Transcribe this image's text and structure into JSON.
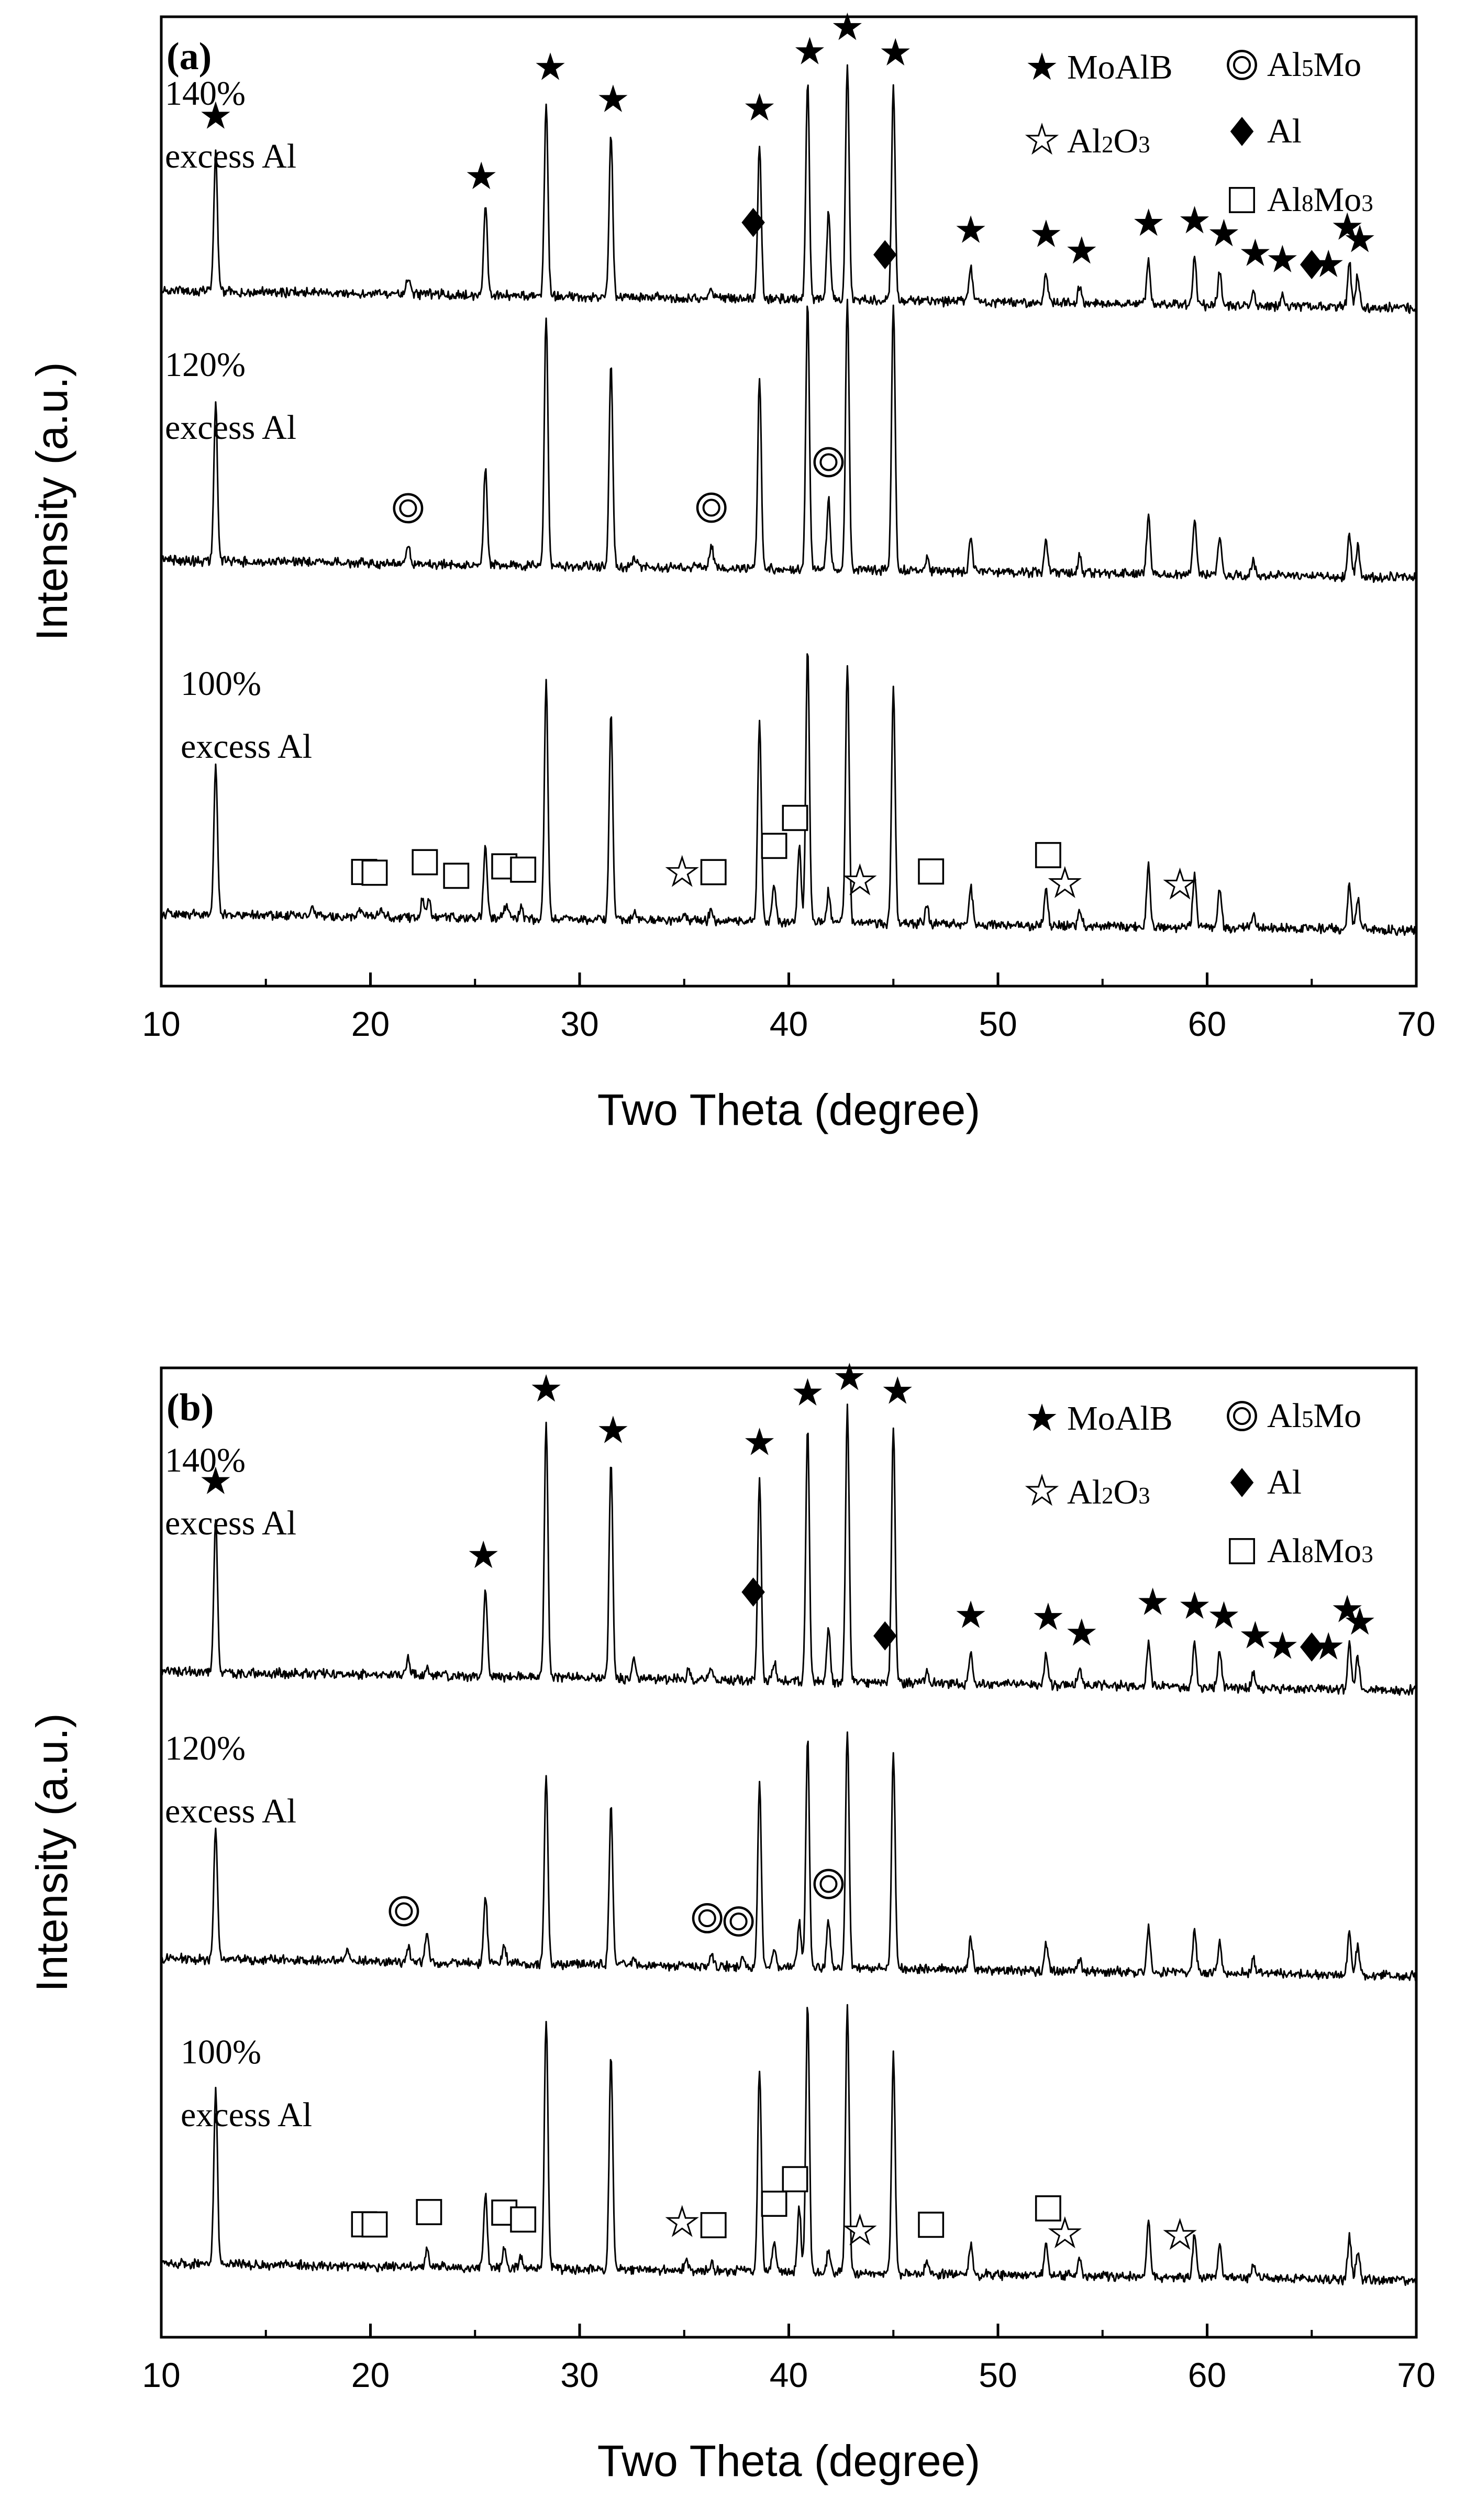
{
  "chart_data": [
    {
      "type": "line",
      "panel_label": "(a)",
      "xlabel": "Two Theta (degree)",
      "ylabel": "Intensity (a.u.)",
      "xlim": [
        10,
        70
      ],
      "xticks": [
        "10",
        "20",
        "30",
        "40",
        "50",
        "60",
        "70"
      ],
      "y_ticks_shown": false,
      "legend": [
        {
          "symbol": "filled-star",
          "label": "MoAlB"
        },
        {
          "symbol": "double-circle",
          "label": "Al5Mo"
        },
        {
          "symbol": "open-star",
          "label": "Al2O3"
        },
        {
          "symbol": "filled-diamond",
          "label": "Al"
        },
        {
          "symbol": "open-square",
          "label": "Al8Mo3"
        }
      ],
      "series": [
        {
          "name": "140% excess Al",
          "line1": "140%",
          "line2": "excess Al",
          "peaks": [
            [
              12.6,
              0.88
            ],
            [
              21.8,
              0.12
            ],
            [
              25.5,
              0.58
            ],
            [
              28.4,
              1.22
            ],
            [
              31.5,
              1.05
            ],
            [
              36.3,
              0.06
            ],
            [
              38.6,
              0.98
            ],
            [
              40.9,
              1.38
            ],
            [
              41.9,
              0.55
            ],
            [
              42.8,
              1.5
            ],
            [
              45.0,
              1.38
            ],
            [
              48.7,
              0.22
            ],
            [
              52.3,
              0.2
            ],
            [
              53.9,
              0.1
            ],
            [
              57.2,
              0.28
            ],
            [
              59.4,
              0.3
            ],
            [
              60.6,
              0.22
            ],
            [
              62.2,
              0.1
            ],
            [
              63.6,
              0.06
            ],
            [
              66.8,
              0.28
            ],
            [
              67.2,
              0.2
            ]
          ],
          "markers": [
            {
              "phase": "MoAlB",
              "x": [
                12.6,
                25.3,
                28.6,
                31.6,
                38.6,
                41.0,
                42.8,
                45.1,
                48.7,
                52.3,
                54.0,
                57.2,
                59.4,
                60.8,
                62.3,
                63.6,
                65.8,
                66.7,
                67.3
              ]
            },
            {
              "phase": "Al",
              "x": [
                38.3,
                44.6,
                65.0
              ]
            }
          ]
        },
        {
          "name": "120% excess Al",
          "line1": "120%",
          "line2": "excess Al",
          "peaks": [
            [
              12.6,
              1.0
            ],
            [
              21.8,
              0.12
            ],
            [
              25.5,
              0.62
            ],
            [
              28.4,
              1.6
            ],
            [
              31.5,
              1.3
            ],
            [
              32.6,
              0.06
            ],
            [
              36.3,
              0.15
            ],
            [
              38.6,
              1.2
            ],
            [
              40.9,
              1.7
            ],
            [
              41.9,
              0.45
            ],
            [
              42.8,
              1.72
            ],
            [
              45.0,
              1.7
            ],
            [
              46.6,
              0.08
            ],
            [
              48.7,
              0.22
            ],
            [
              52.3,
              0.2
            ],
            [
              53.9,
              0.1
            ],
            [
              57.2,
              0.38
            ],
            [
              59.4,
              0.35
            ],
            [
              60.6,
              0.25
            ],
            [
              62.2,
              0.1
            ],
            [
              66.8,
              0.28
            ],
            [
              67.2,
              0.2
            ]
          ],
          "markers": [
            {
              "phase": "Al5Mo",
              "x": [
                21.8,
                36.3,
                41.9
              ]
            }
          ]
        },
        {
          "name": "100% excess Al",
          "line1": "100%",
          "line2": "excess Al",
          "peaks": [
            [
              12.6,
              0.95
            ],
            [
              17.2,
              0.05
            ],
            [
              19.5,
              0.05
            ],
            [
              20.5,
              0.05
            ],
            [
              22.5,
              0.12
            ],
            [
              22.8,
              0.1
            ],
            [
              25.5,
              0.45
            ],
            [
              26.5,
              0.1
            ],
            [
              27.2,
              0.08
            ],
            [
              28.4,
              1.5
            ],
            [
              31.5,
              1.3
            ],
            [
              32.6,
              0.06
            ],
            [
              35.0,
              0.04
            ],
            [
              36.3,
              0.08
            ],
            [
              38.6,
              1.28
            ],
            [
              39.3,
              0.25
            ],
            [
              40.5,
              0.48
            ],
            [
              40.9,
              1.75
            ],
            [
              41.9,
              0.2
            ],
            [
              42.8,
              1.65
            ],
            [
              45.0,
              1.5
            ],
            [
              46.6,
              0.1
            ],
            [
              48.7,
              0.24
            ],
            [
              52.3,
              0.22
            ],
            [
              53.9,
              0.1
            ],
            [
              57.2,
              0.38
            ],
            [
              59.4,
              0.32
            ],
            [
              60.6,
              0.24
            ],
            [
              62.2,
              0.1
            ],
            [
              66.8,
              0.28
            ],
            [
              67.2,
              0.2
            ]
          ],
          "markers": [
            {
              "phase": "Al8Mo3",
              "x": [
                19.7,
                20.2,
                22.6,
                24.1,
                26.4,
                27.3,
                36.4,
                39.3,
                40.3,
                46.8,
                52.4
              ]
            },
            {
              "phase": "Al2O3",
              "x": [
                34.9,
                43.4,
                53.2,
                58.7
              ]
            }
          ]
        }
      ]
    },
    {
      "type": "line",
      "panel_label": "(b)",
      "xlabel": "Two Theta (degree)",
      "ylabel": "Intensity (a.u.)",
      "xlim": [
        10,
        70
      ],
      "xticks": [
        "10",
        "20",
        "30",
        "40",
        "50",
        "60",
        "70"
      ],
      "y_ticks_shown": false,
      "legend": [
        {
          "symbol": "filled-star",
          "label": "MoAlB"
        },
        {
          "symbol": "double-circle",
          "label": "Al5Mo"
        },
        {
          "symbol": "open-star",
          "label": "Al2O3"
        },
        {
          "symbol": "filled-diamond",
          "label": "Al"
        },
        {
          "symbol": "open-square",
          "label": "Al8Mo3"
        }
      ],
      "series": [
        {
          "name": "140% excess Al",
          "line1": "140%",
          "line2": "excess Al",
          "peaks": [
            [
              12.6,
              0.98
            ],
            [
              21.8,
              0.1
            ],
            [
              22.7,
              0.06
            ],
            [
              25.5,
              0.55
            ],
            [
              28.4,
              1.6
            ],
            [
              31.5,
              1.38
            ],
            [
              32.6,
              0.12
            ],
            [
              35.2,
              0.06
            ],
            [
              36.3,
              0.08
            ],
            [
              38.6,
              1.28
            ],
            [
              39.3,
              0.12
            ],
            [
              40.9,
              1.6
            ],
            [
              41.9,
              0.35
            ],
            [
              42.8,
              1.75
            ],
            [
              45.0,
              1.62
            ],
            [
              46.6,
              0.08
            ],
            [
              48.7,
              0.2
            ],
            [
              52.3,
              0.2
            ],
            [
              53.9,
              0.1
            ],
            [
              57.2,
              0.3
            ],
            [
              59.4,
              0.28
            ],
            [
              60.6,
              0.22
            ],
            [
              62.2,
              0.1
            ],
            [
              66.8,
              0.28
            ],
            [
              67.2,
              0.2
            ]
          ],
          "markers": [
            {
              "phase": "MoAlB",
              "x": [
                12.6,
                25.4,
                28.4,
                31.6,
                38.6,
                40.9,
                42.9,
                45.2,
                48.7,
                52.4,
                54.0,
                57.4,
                59.4,
                60.8,
                62.3,
                63.6,
                65.8,
                66.7,
                67.3
              ]
            },
            {
              "phase": "Al",
              "x": [
                38.3,
                44.6,
                65.0
              ]
            }
          ]
        },
        {
          "name": "120% excess Al",
          "line1": "120%",
          "line2": "excess Al",
          "peaks": [
            [
              12.6,
              0.85
            ],
            [
              18.9,
              0.08
            ],
            [
              21.8,
              0.1
            ],
            [
              22.7,
              0.2
            ],
            [
              25.5,
              0.42
            ],
            [
              26.4,
              0.1
            ],
            [
              28.4,
              1.2
            ],
            [
              31.5,
              1.0
            ],
            [
              32.6,
              0.05
            ],
            [
              36.3,
              0.08
            ],
            [
              37.8,
              0.06
            ],
            [
              38.6,
              1.15
            ],
            [
              39.3,
              0.12
            ],
            [
              40.5,
              0.3
            ],
            [
              40.9,
              1.45
            ],
            [
              41.9,
              0.3
            ],
            [
              42.8,
              1.5
            ],
            [
              45.0,
              1.38
            ],
            [
              48.7,
              0.2
            ],
            [
              52.3,
              0.18
            ],
            [
              53.9,
              0.08
            ],
            [
              57.2,
              0.28
            ],
            [
              59.4,
              0.28
            ],
            [
              60.6,
              0.2
            ],
            [
              62.2,
              0.1
            ],
            [
              66.8,
              0.28
            ],
            [
              67.2,
              0.2
            ]
          ],
          "markers": [
            {
              "phase": "Al5Mo",
              "x": [
                21.6,
                36.1,
                37.6,
                41.9
              ]
            }
          ]
        },
        {
          "name": "100% excess Al",
          "line1": "100%",
          "line2": "excess Al",
          "peaks": [
            [
              12.6,
              1.1
            ],
            [
              22.7,
              0.12
            ],
            [
              25.5,
              0.48
            ],
            [
              26.4,
              0.12
            ],
            [
              27.2,
              0.08
            ],
            [
              28.4,
              1.6
            ],
            [
              31.5,
              1.38
            ],
            [
              35.1,
              0.08
            ],
            [
              36.3,
              0.06
            ],
            [
              38.6,
              1.3
            ],
            [
              39.3,
              0.2
            ],
            [
              40.5,
              0.4
            ],
            [
              40.9,
              1.7
            ],
            [
              41.9,
              0.15
            ],
            [
              42.8,
              1.7
            ],
            [
              45.0,
              1.4
            ],
            [
              46.6,
              0.08
            ],
            [
              48.7,
              0.2
            ],
            [
              52.3,
              0.2
            ],
            [
              53.9,
              0.1
            ],
            [
              57.2,
              0.35
            ],
            [
              59.4,
              0.28
            ],
            [
              60.6,
              0.22
            ],
            [
              62.2,
              0.1
            ],
            [
              66.8,
              0.28
            ],
            [
              67.2,
              0.2
            ]
          ],
          "markers": [
            {
              "phase": "Al8Mo3",
              "x": [
                19.7,
                20.2,
                22.8,
                26.4,
                27.3,
                36.4,
                39.3,
                40.3,
                46.8,
                52.4
              ]
            },
            {
              "phase": "Al2O3",
              "x": [
                34.9,
                43.4,
                53.2,
                58.7
              ]
            }
          ]
        }
      ]
    }
  ]
}
